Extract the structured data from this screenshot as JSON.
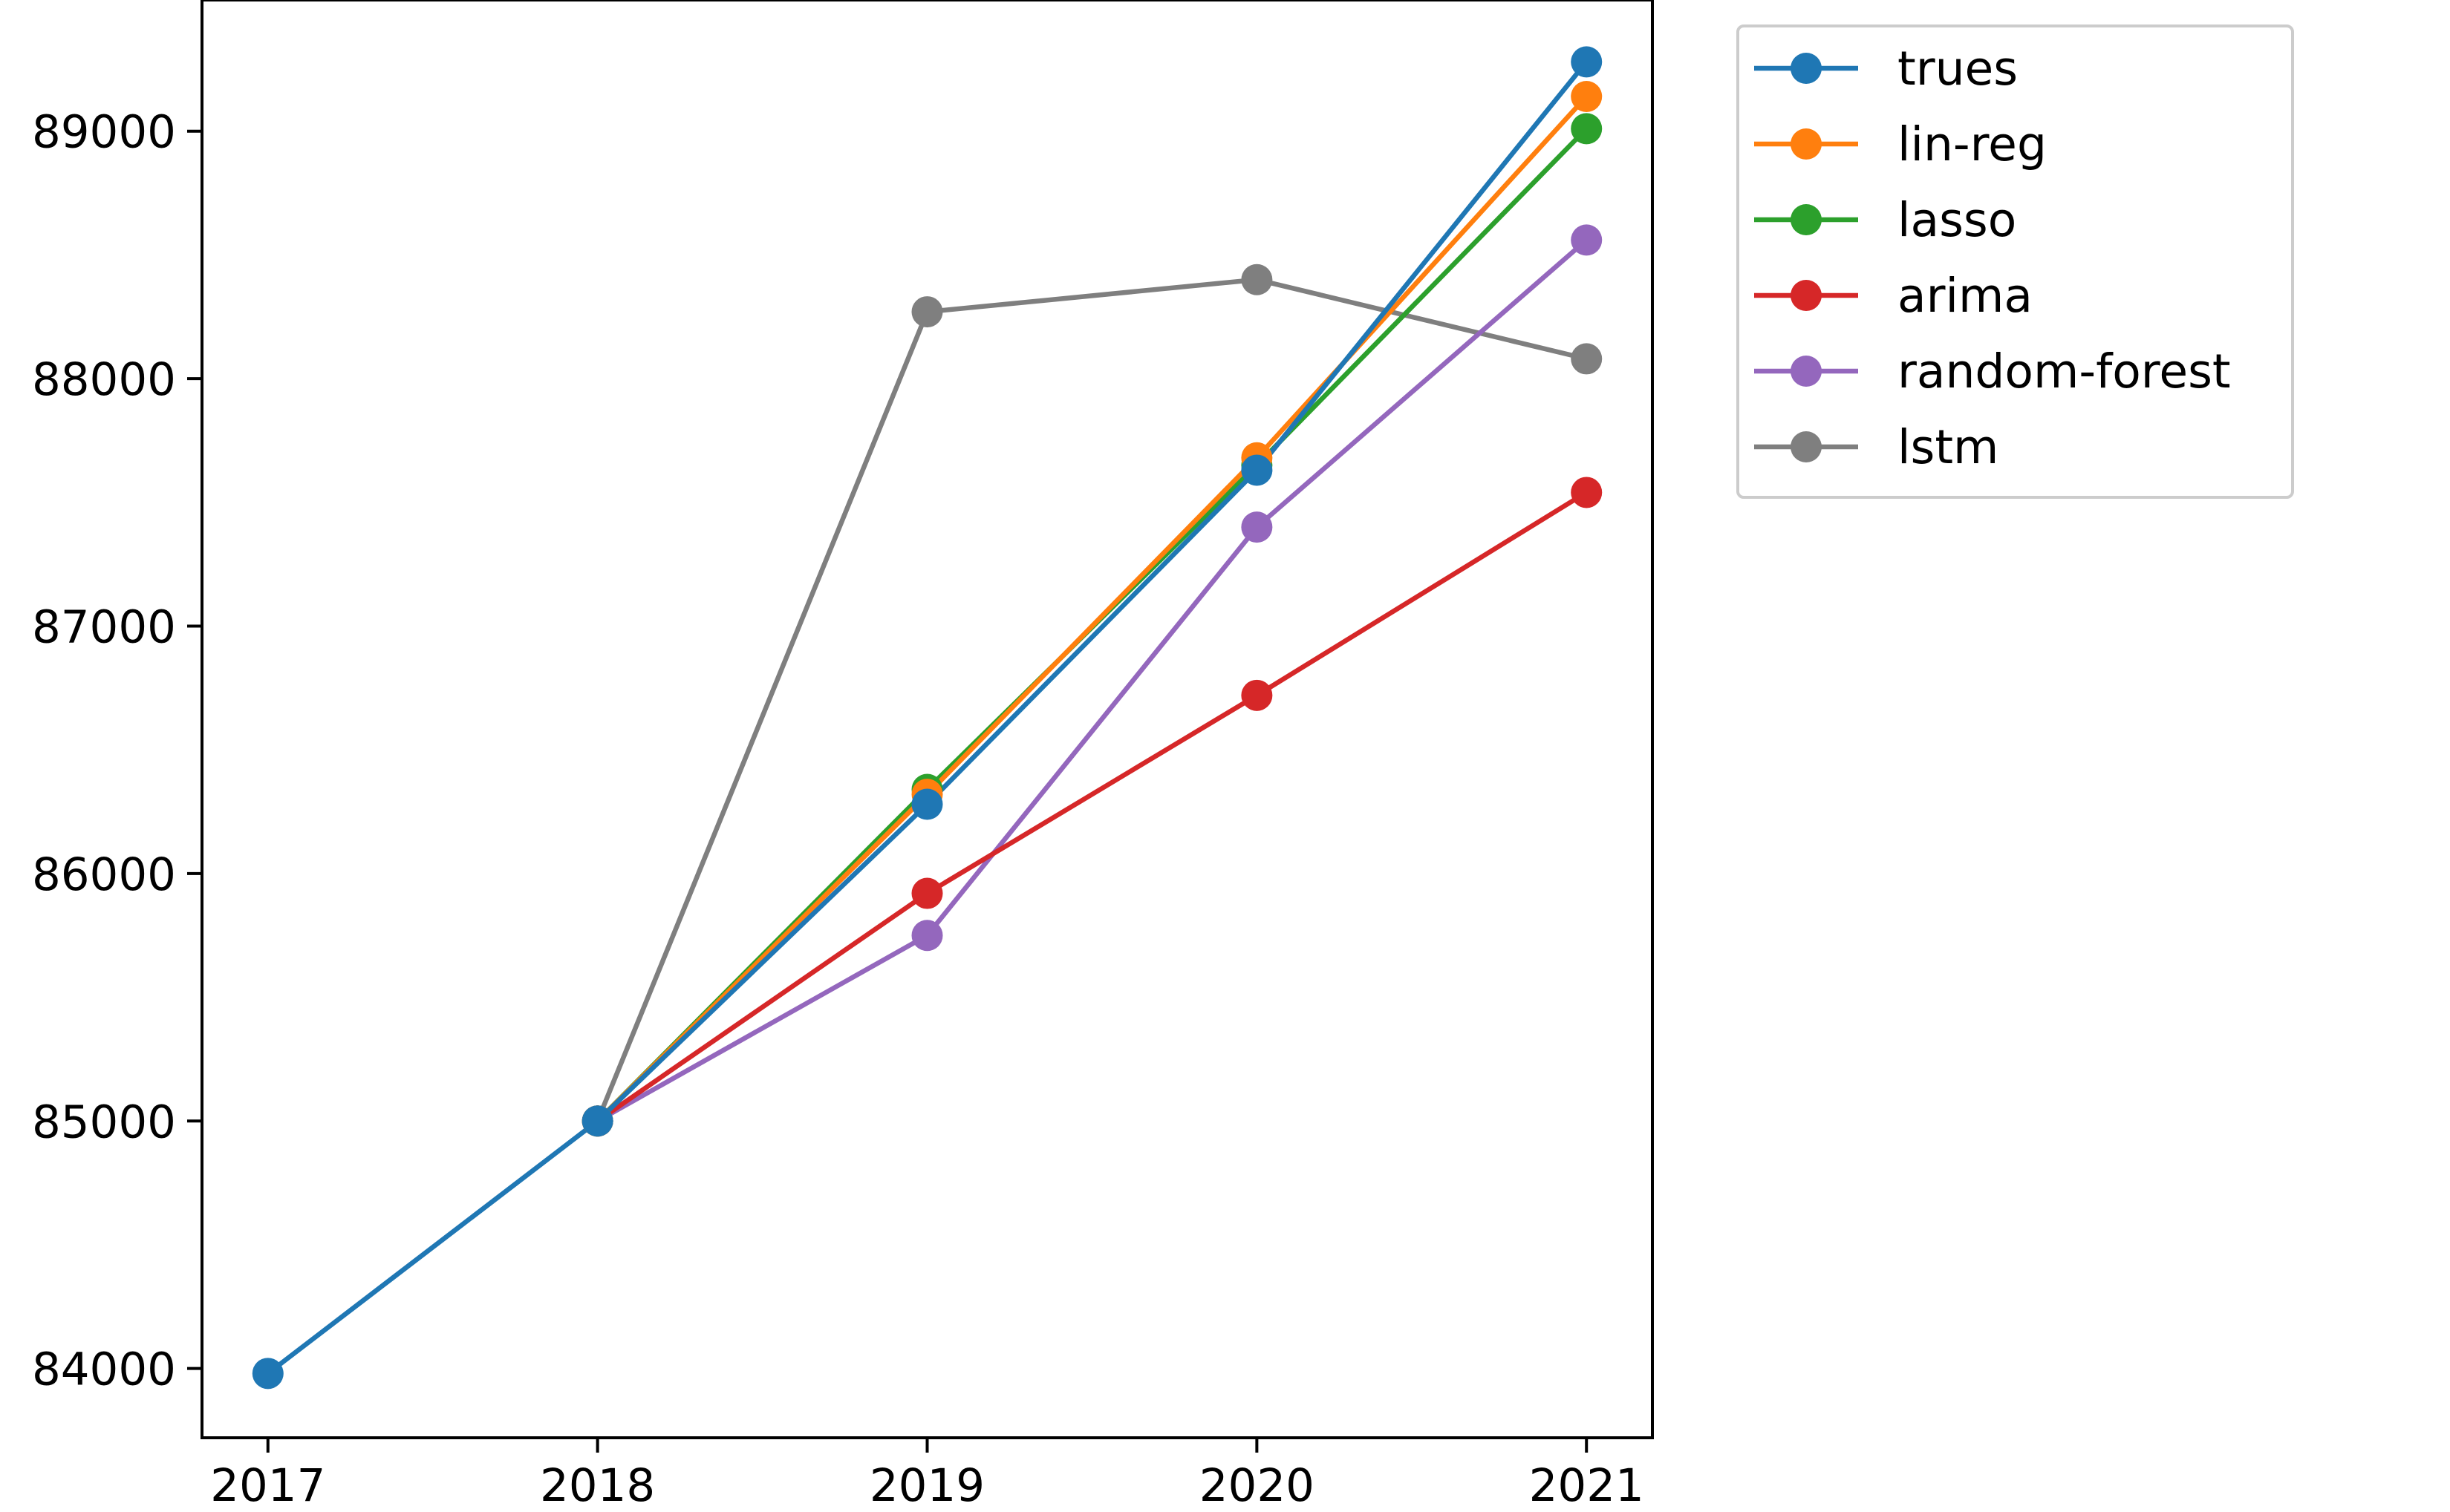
{
  "chart_data": {
    "type": "line",
    "title": "",
    "xlabel": "",
    "ylabel": "",
    "x": [
      "2017",
      "2018",
      "2019",
      "2020",
      "2021"
    ],
    "xlim": [
      2016.8,
      2021.2
    ],
    "ylim": [
      83720,
      89530
    ],
    "yticks": [
      84000,
      85000,
      86000,
      87000,
      88000,
      89000
    ],
    "ytick_labels": [
      "84000",
      "85000",
      "86000",
      "87000",
      "88000",
      "89000"
    ],
    "grid": false,
    "legend_position": "outside-top-right",
    "series": [
      {
        "name": "trues",
        "color": "#1f77b4",
        "x": [
          2017,
          2018,
          2019,
          2020,
          2021
        ],
        "values": [
          83980,
          85000,
          86280,
          87630,
          89280
        ]
      },
      {
        "name": "lin-reg",
        "color": "#ff7f0e",
        "x": [
          2018,
          2019,
          2020,
          2021
        ],
        "values": [
          85000,
          86320,
          87680,
          89140
        ]
      },
      {
        "name": "lasso",
        "color": "#2ca02c",
        "x": [
          2018,
          2019,
          2020,
          2021
        ],
        "values": [
          85000,
          86340,
          87650,
          89010
        ]
      },
      {
        "name": "arima",
        "color": "#d62728",
        "x": [
          2018,
          2019,
          2020,
          2021
        ],
        "values": [
          85000,
          85920,
          86720,
          87540
        ]
      },
      {
        "name": "random-forest",
        "color": "#9467bd",
        "x": [
          2018,
          2019,
          2020,
          2021
        ],
        "values": [
          85000,
          85750,
          87400,
          88560
        ]
      },
      {
        "name": "lstm",
        "color": "#7f7f7f",
        "x": [
          2018,
          2019,
          2020,
          2021
        ],
        "values": [
          85000,
          88270,
          88400,
          88080
        ]
      }
    ]
  }
}
